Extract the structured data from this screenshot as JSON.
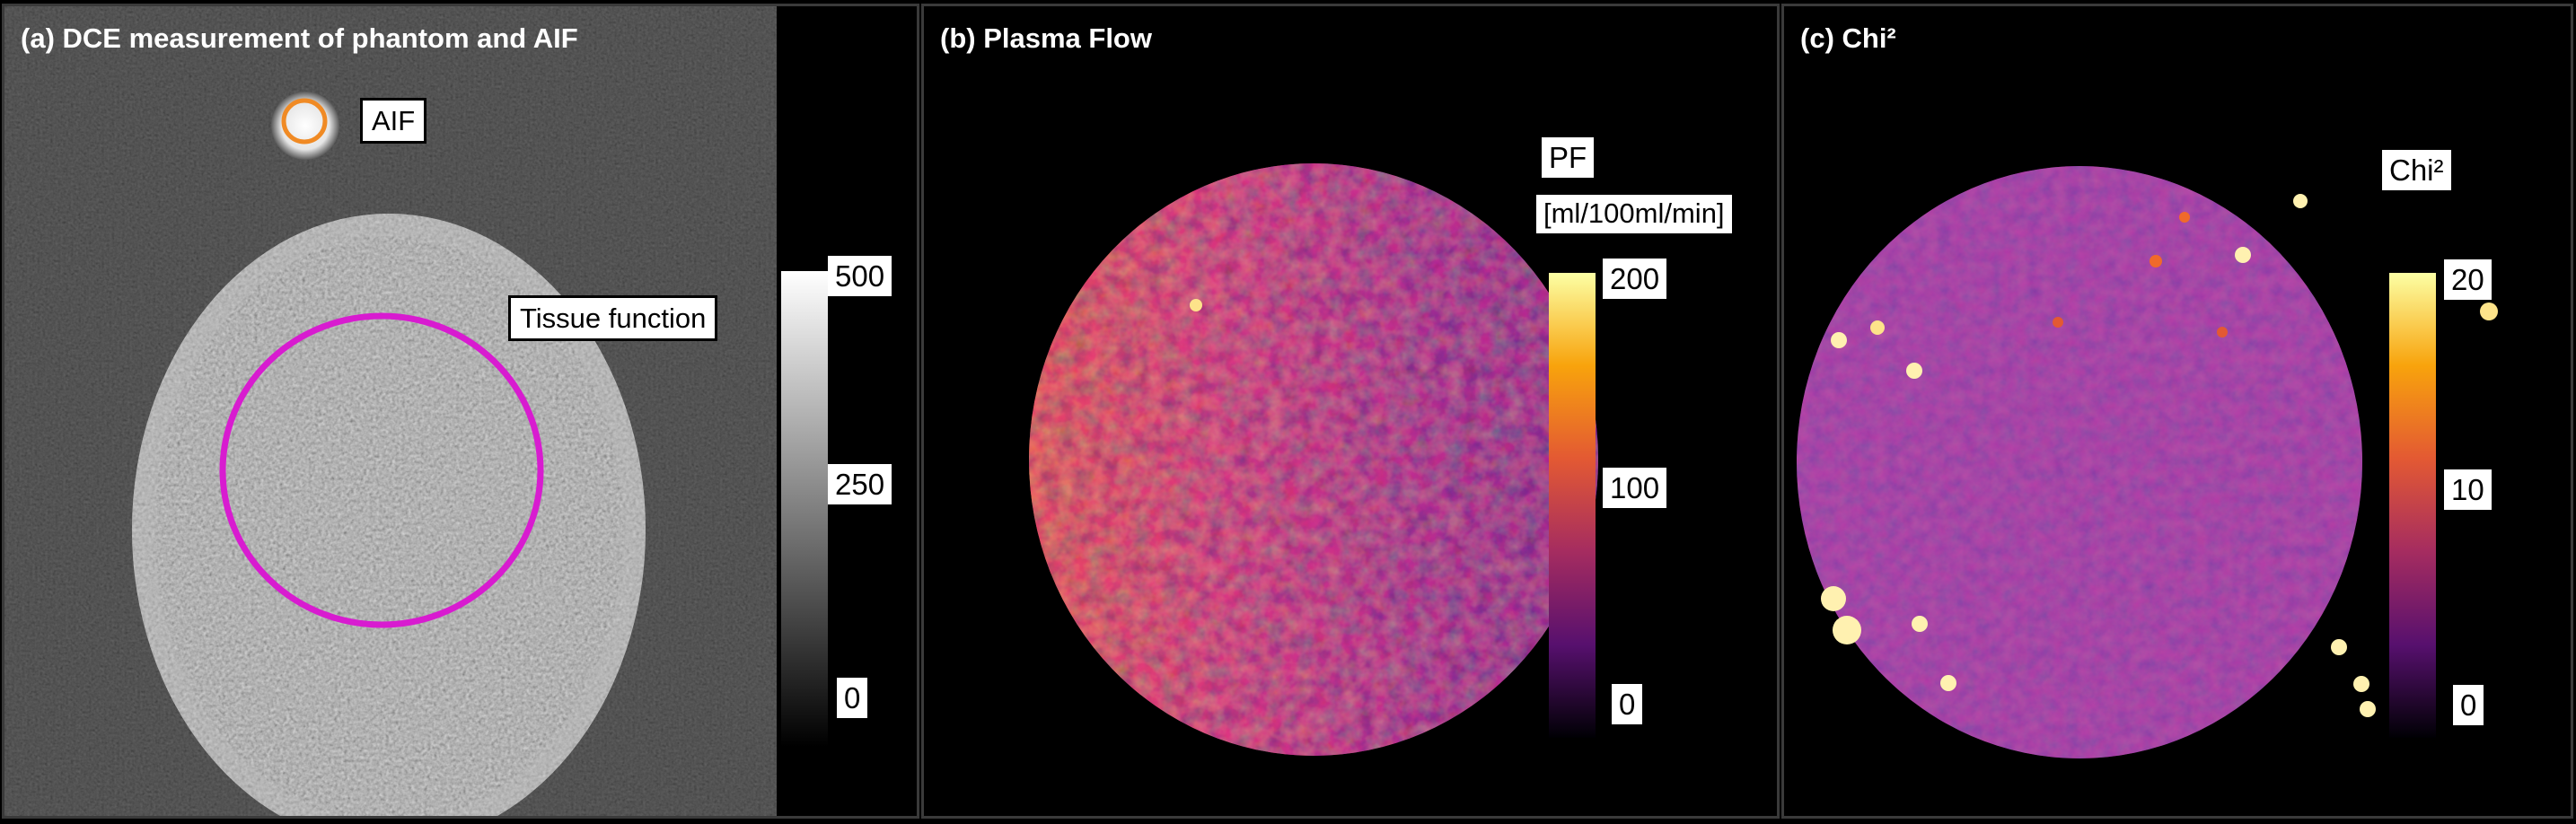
{
  "panels": {
    "a": {
      "title": "(a) DCE measurement of phantom and AIF",
      "labels": {
        "aif": "AIF",
        "tissue": "Tissue function"
      },
      "colorbar": {
        "ticks": [
          "500",
          "250",
          "0"
        ],
        "colormap": "grayscale"
      }
    },
    "b": {
      "title": "(b) Plasma Flow",
      "colorbar": {
        "label": "PF",
        "unit": "[ml/100ml/min]",
        "ticks": [
          "200",
          "100",
          "0"
        ],
        "colormap": "inferno"
      }
    },
    "c": {
      "title": "(c) Chi²",
      "colorbar": {
        "label": "Chi²",
        "ticks": [
          "20",
          "10",
          "0"
        ],
        "colormap": "inferno"
      }
    }
  },
  "colors": {
    "aif_roi": "#f08a24",
    "tissue_roi": "#d81bd0",
    "background": "#000000"
  }
}
